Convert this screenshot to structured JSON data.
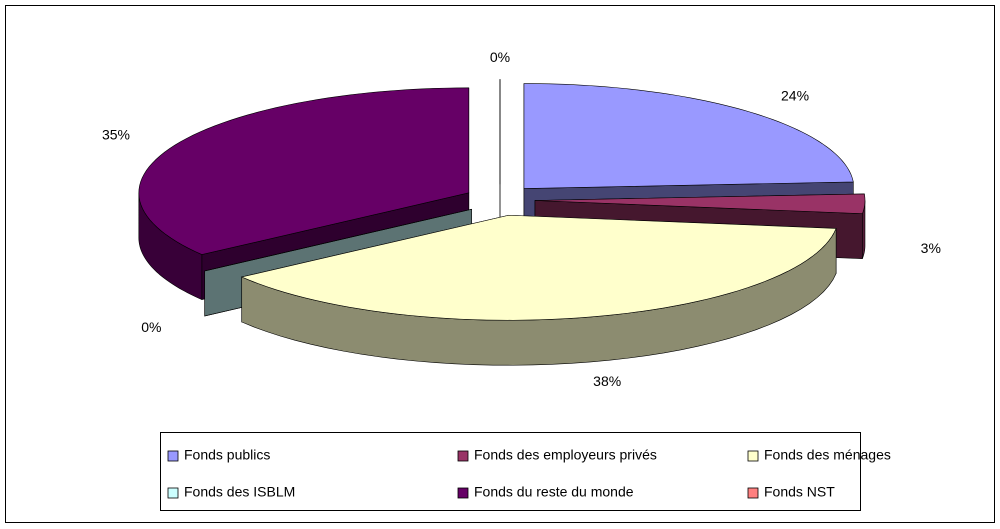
{
  "chart_data": {
    "type": "pie",
    "categories": [
      "Fonds publics",
      "Fonds des employeurs privés",
      "Fonds des ménages",
      "Fonds des ISBLM",
      "Fonds du reste du monde",
      "Fonds NST"
    ],
    "values": [
      24,
      3,
      38,
      0,
      35,
      0
    ],
    "value_labels": [
      "24%",
      "3%",
      "38%",
      "0%",
      "35%",
      "0%"
    ],
    "colors": [
      "#9999ff",
      "#993366",
      "#ffffcc",
      "#ccffff",
      "#660066",
      "#ff8080"
    ],
    "legend": "bottom"
  }
}
